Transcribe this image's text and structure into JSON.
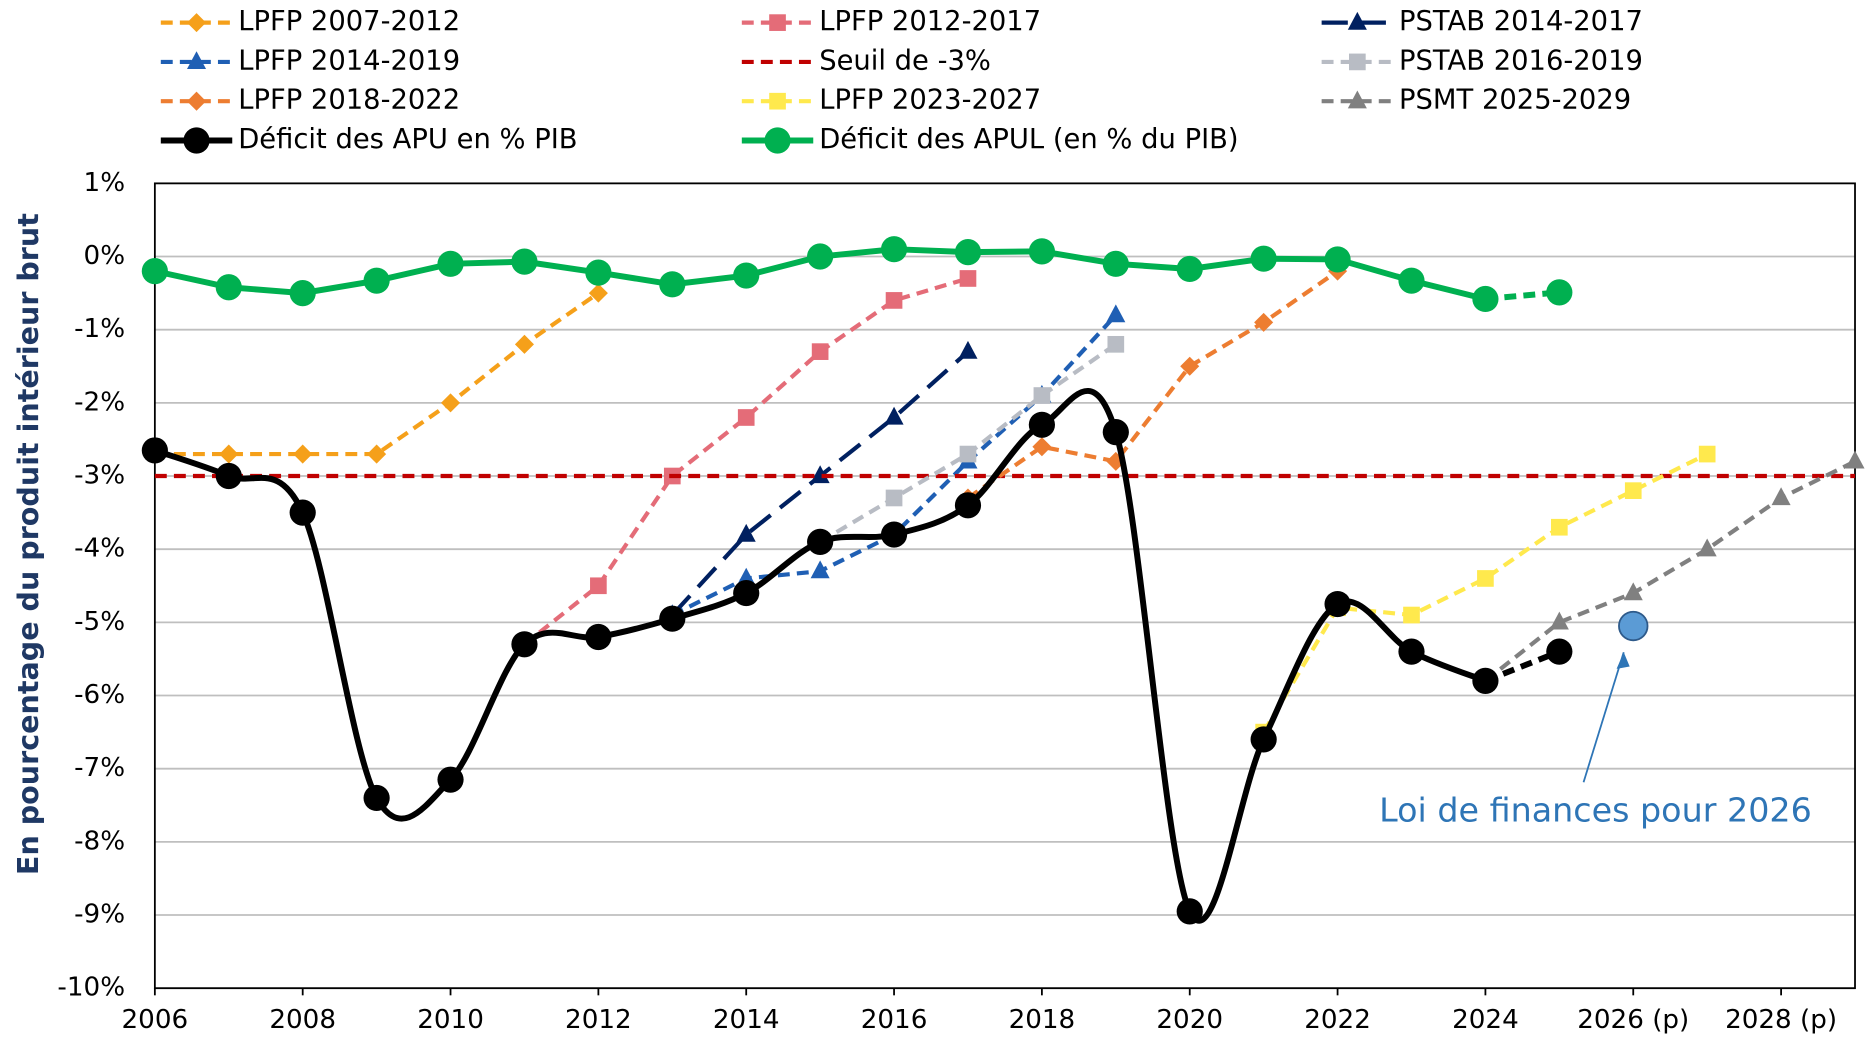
{
  "chart_data": {
    "type": "line",
    "y_label": "En pourcentage du produit intérieur brut",
    "xlim": [
      2006,
      2029
    ],
    "xticks": [
      2006,
      2008,
      2010,
      2012,
      2014,
      2016,
      2018,
      2020,
      2022,
      2024,
      {
        "value": 2026,
        "label": "2026 (p)"
      },
      {
        "value": 2028,
        "label": "2028 (p)"
      }
    ],
    "ylim": [
      -10,
      1
    ],
    "yticks": [
      {
        "value": 1,
        "label": "1%"
      },
      {
        "value": 0,
        "label": "0%"
      },
      {
        "value": -1,
        "label": "-1%"
      },
      {
        "value": -2,
        "label": "-2%"
      },
      {
        "value": -3,
        "label": "-3%"
      },
      {
        "value": -4,
        "label": "-4%"
      },
      {
        "value": -5,
        "label": "-5%"
      },
      {
        "value": -6,
        "label": "-6%"
      },
      {
        "value": -7,
        "label": "-7%"
      },
      {
        "value": -8,
        "label": "-8%"
      },
      {
        "value": -9,
        "label": "-9%"
      },
      {
        "value": -10,
        "label": "-10%"
      }
    ],
    "grid": true,
    "series": [
      {
        "name": "LPFP 2007-2012",
        "color": "#f5a01a",
        "marker": "diamond",
        "line_style": "dashed",
        "x": [
          2006,
          2007,
          2008,
          2009,
          2010,
          2011,
          2012
        ],
        "values": [
          -2.7,
          -2.7,
          -2.7,
          -2.7,
          -2.0,
          -1.2,
          -0.5
        ]
      },
      {
        "name": "LPFP 2012-2017",
        "color": "#e46c78",
        "marker": "square",
        "line_style": "dashed",
        "x": [
          2011,
          2012,
          2013,
          2014,
          2015,
          2016,
          2017
        ],
        "values": [
          -5.3,
          -4.5,
          -3.0,
          -2.2,
          -1.3,
          -0.6,
          -0.3
        ]
      },
      {
        "name": "PSTAB 2014-2017",
        "color": "#002060",
        "marker": "triangle",
        "line_style": "long-dashed",
        "x": [
          2013,
          2014,
          2015,
          2016,
          2017
        ],
        "values": [
          -4.9,
          -3.8,
          -3.0,
          -2.2,
          -1.3
        ]
      },
      {
        "name": "LPFP 2014-2019",
        "color": "#1f5fb4",
        "marker": "triangle",
        "line_style": "dashed",
        "x": [
          2013,
          2014,
          2015,
          2016,
          2017,
          2018,
          2019
        ],
        "values": [
          -4.9,
          -4.4,
          -4.3,
          -3.8,
          -2.8,
          -1.9,
          -0.8
        ]
      },
      {
        "name": "Seuil de -3%",
        "color": "#c00000",
        "marker": "none",
        "line_style": "dashed",
        "x": [
          2006,
          2029
        ],
        "values": [
          -3,
          -3
        ]
      },
      {
        "name": "PSTAB 2016-2019",
        "color": "#b8bcc4",
        "marker": "square",
        "line_style": "dashed",
        "x": [
          2015,
          2016,
          2017,
          2018,
          2019
        ],
        "values": [
          -3.9,
          -3.3,
          -2.7,
          -1.9,
          -1.2
        ]
      },
      {
        "name": "LPFP 2018-2022",
        "color": "#ed7d31",
        "marker": "diamond",
        "line_style": "dashed",
        "x": [
          2017,
          2018,
          2019,
          2020,
          2021,
          2022
        ],
        "values": [
          -3.3,
          -2.6,
          -2.8,
          -1.5,
          -0.9,
          -0.2
        ]
      },
      {
        "name": "LPFP 2023-2027",
        "color": "#ffe94d",
        "marker": "square",
        "line_style": "dashed",
        "x": [
          2021,
          2022,
          2023,
          2024,
          2025,
          2026,
          2027
        ],
        "values": [
          -6.5,
          -4.8,
          -4.9,
          -4.4,
          -3.7,
          -3.2,
          -2.7
        ]
      },
      {
        "name": "PSMT 2025-2029",
        "color": "#808080",
        "marker": "triangle",
        "line_style": "dashed",
        "x": [
          2024,
          2025,
          2026,
          2027,
          2028,
          2029
        ],
        "values": [
          -5.8,
          -5.0,
          -4.6,
          -4.0,
          -3.3,
          -2.8
        ]
      },
      {
        "name": "Déficit des APU en % PIB",
        "color": "#000000",
        "marker": "circle",
        "line_style": "smooth",
        "dashed_from_x": 2024,
        "x": [
          2006,
          2007,
          2008,
          2009,
          2010,
          2011,
          2012,
          2013,
          2014,
          2015,
          2016,
          2017,
          2018,
          2019,
          2020,
          2021,
          2022,
          2023,
          2024,
          2025
        ],
        "values": [
          -2.65,
          -3.0,
          -3.5,
          -7.4,
          -7.15,
          -5.3,
          -5.2,
          -4.95,
          -4.6,
          -3.9,
          -3.8,
          -3.4,
          -2.3,
          -2.4,
          -8.95,
          -6.6,
          -4.75,
          -5.4,
          -5.8,
          -5.4
        ]
      },
      {
        "name": "Déficit des APUL (en % du PIB)",
        "color": "#00b050",
        "marker": "circle",
        "line_style": "solid",
        "dashed_from_x": 2024,
        "x": [
          2006,
          2007,
          2008,
          2009,
          2010,
          2011,
          2012,
          2013,
          2014,
          2015,
          2016,
          2017,
          2018,
          2019,
          2020,
          2021,
          2022,
          2023,
          2024,
          2025
        ],
        "values": [
          -0.2,
          -0.42,
          -0.5,
          -0.33,
          -0.1,
          -0.07,
          -0.22,
          -0.38,
          -0.26,
          0.0,
          0.1,
          0.06,
          0.07,
          -0.1,
          -0.17,
          -0.03,
          -0.04,
          -0.33,
          -0.58,
          -0.49
        ]
      }
    ],
    "annotation": {
      "text": "Loi de finances pour 2026",
      "x": 2026,
      "y": -5.05,
      "color": "#5b9bd5",
      "text_color": "#2e75b6"
    }
  }
}
